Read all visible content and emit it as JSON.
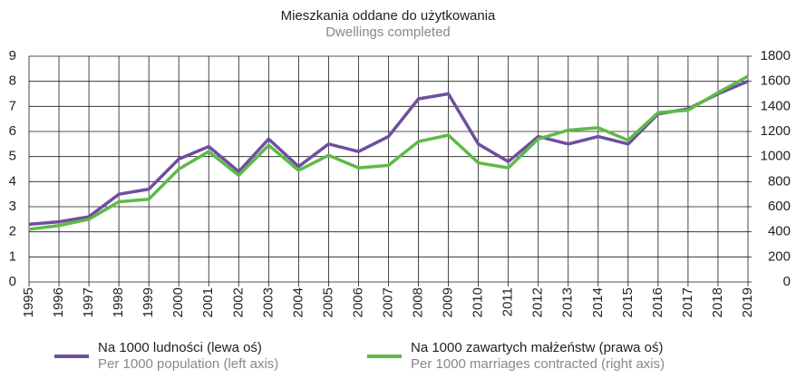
{
  "chart_data": {
    "type": "line",
    "title": "Mieszkania oddane do użytkowania",
    "subtitle": "Dwellings completed",
    "categories": [
      "1995",
      "1996",
      "1997",
      "1998",
      "1999",
      "2000",
      "2001",
      "2002",
      "2003",
      "2004",
      "2005",
      "2006",
      "2007",
      "2008",
      "2009",
      "2010",
      "2011",
      "2012",
      "2013",
      "2014",
      "2015",
      "2016",
      "2017",
      "2018",
      "2019"
    ],
    "series": [
      {
        "name": "Na 1000 ludności (lewa oś)",
        "name_en": "Per 1000 population (left axis)",
        "color": "#6f4ea0",
        "axis": "y",
        "values": [
          2.3,
          2.4,
          2.6,
          3.5,
          3.7,
          4.9,
          5.4,
          4.4,
          5.7,
          4.6,
          5.5,
          5.2,
          5.8,
          7.3,
          7.5,
          5.5,
          4.8,
          5.8,
          5.5,
          5.8,
          5.5,
          6.7,
          6.9,
          7.5,
          8.0
        ]
      },
      {
        "name": "Na 1000 zawartych małżeństw (prawa oś)",
        "name_en": "Per 1000 marriages contracted (right axis)",
        "color": "#5dbb46",
        "axis": "y2",
        "values": [
          420,
          450,
          500,
          640,
          660,
          900,
          1040,
          850,
          1090,
          890,
          1010,
          910,
          930,
          1120,
          1170,
          950,
          910,
          1140,
          1210,
          1230,
          1130,
          1350,
          1370,
          1510,
          1640
        ]
      }
    ],
    "ylim": [
      0,
      9
    ],
    "yticks": [
      0,
      1,
      2,
      3,
      4,
      5,
      6,
      7,
      8,
      9
    ],
    "y2lim": [
      0,
      1800
    ],
    "y2ticks": [
      0,
      200,
      400,
      600,
      800,
      1000,
      1200,
      1400,
      1600,
      1800
    ],
    "grid": true
  }
}
